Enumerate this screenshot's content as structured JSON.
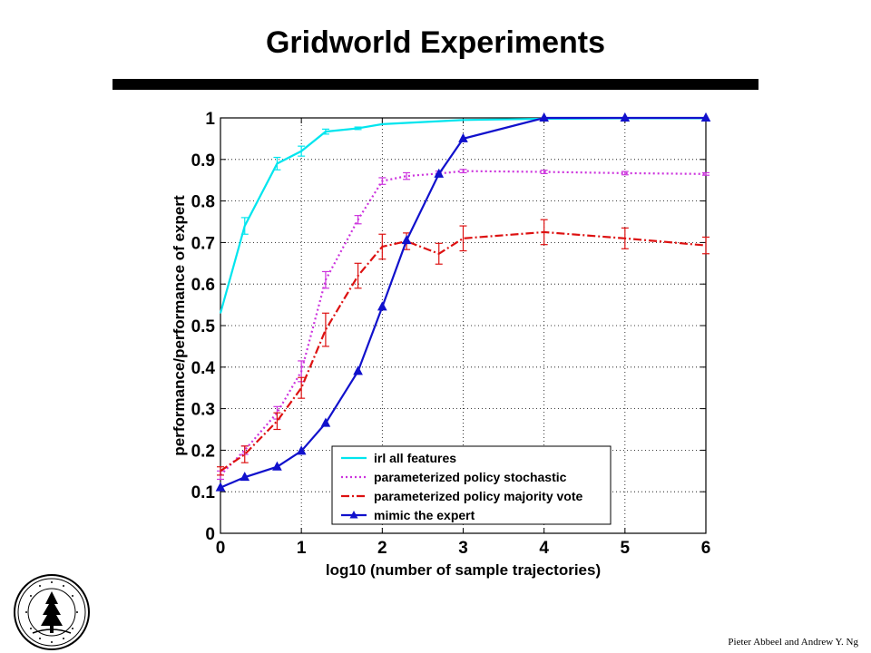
{
  "slide": {
    "title": "Gridworld Experiments",
    "credit": "Pieter Abbeel and Andrew Y. Ng",
    "seal_text": "LELAND STANFORD JUNIOR UNIVERSITY · ORGANIZED 1891"
  },
  "chart_data": {
    "type": "line",
    "title": "",
    "xlabel": "log10 (number of sample trajectories)",
    "ylabel": "performance/performance of expert",
    "xlim": [
      0,
      6
    ],
    "ylim": [
      0,
      1
    ],
    "xticks": [
      "0",
      "1",
      "2",
      "3",
      "4",
      "5",
      "6"
    ],
    "yticks": [
      "0",
      "0.1",
      "0.2",
      "0.3",
      "0.4",
      "0.5",
      "0.6",
      "0.7",
      "0.8",
      "0.9",
      "1"
    ],
    "grid": true,
    "legend_position": "bottom-right",
    "series": [
      {
        "name": "irl all features",
        "color": "#00e5ee",
        "dash": "solid",
        "marker": "none",
        "x": [
          0,
          0.3,
          0.7,
          1.0,
          1.3,
          1.7,
          2.0,
          3.0,
          4.0,
          5.0,
          6.0
        ],
        "y": [
          0.53,
          0.74,
          0.89,
          0.92,
          0.967,
          0.975,
          0.985,
          0.995,
          0.998,
          0.999,
          0.999
        ],
        "err": [
          0,
          0.02,
          0.015,
          0.012,
          0.006,
          0.003,
          0,
          0,
          0,
          0,
          0
        ]
      },
      {
        "name": "parameterized policy stochastic",
        "color": "#cc33dd",
        "dash": "dotted",
        "marker": "none",
        "x": [
          0,
          0.3,
          0.7,
          1.0,
          1.3,
          1.7,
          2.0,
          2.3,
          2.7,
          3.0,
          4.0,
          5.0,
          6.0
        ],
        "y": [
          0.14,
          0.2,
          0.29,
          0.39,
          0.61,
          0.755,
          0.848,
          0.86,
          0.866,
          0.872,
          0.87,
          0.867,
          0.865
        ],
        "err": [
          0.01,
          0.01,
          0.015,
          0.025,
          0.02,
          0.01,
          0.008,
          0.008,
          0.006,
          0.004,
          0.004,
          0.004,
          0.003
        ]
      },
      {
        "name": "parameterized policy majority vote",
        "color": "#dd1111",
        "dash": "dashdot",
        "marker": "none",
        "x": [
          0,
          0.3,
          0.7,
          1.0,
          1.3,
          1.7,
          2.0,
          2.3,
          2.7,
          3.0,
          4.0,
          5.0,
          6.0
        ],
        "y": [
          0.15,
          0.19,
          0.27,
          0.35,
          0.49,
          0.62,
          0.69,
          0.703,
          0.673,
          0.71,
          0.725,
          0.71,
          0.693
        ],
        "err": [
          0.01,
          0.02,
          0.02,
          0.025,
          0.04,
          0.03,
          0.03,
          0.02,
          0.025,
          0.03,
          0.03,
          0.025,
          0.02
        ]
      },
      {
        "name": "mimic the expert",
        "color": "#1111cc",
        "dash": "solid",
        "marker": "triangle",
        "x": [
          0,
          0.3,
          0.7,
          1.0,
          1.3,
          1.7,
          2.0,
          2.3,
          2.7,
          3.0,
          4.0,
          5.0,
          6.0
        ],
        "y": [
          0.11,
          0.135,
          0.16,
          0.198,
          0.265,
          0.39,
          0.545,
          0.705,
          0.865,
          0.95,
          1.0,
          1.0,
          1.0
        ],
        "err": [
          0,
          0,
          0,
          0,
          0,
          0,
          0,
          0,
          0,
          0,
          0,
          0,
          0
        ]
      }
    ]
  }
}
